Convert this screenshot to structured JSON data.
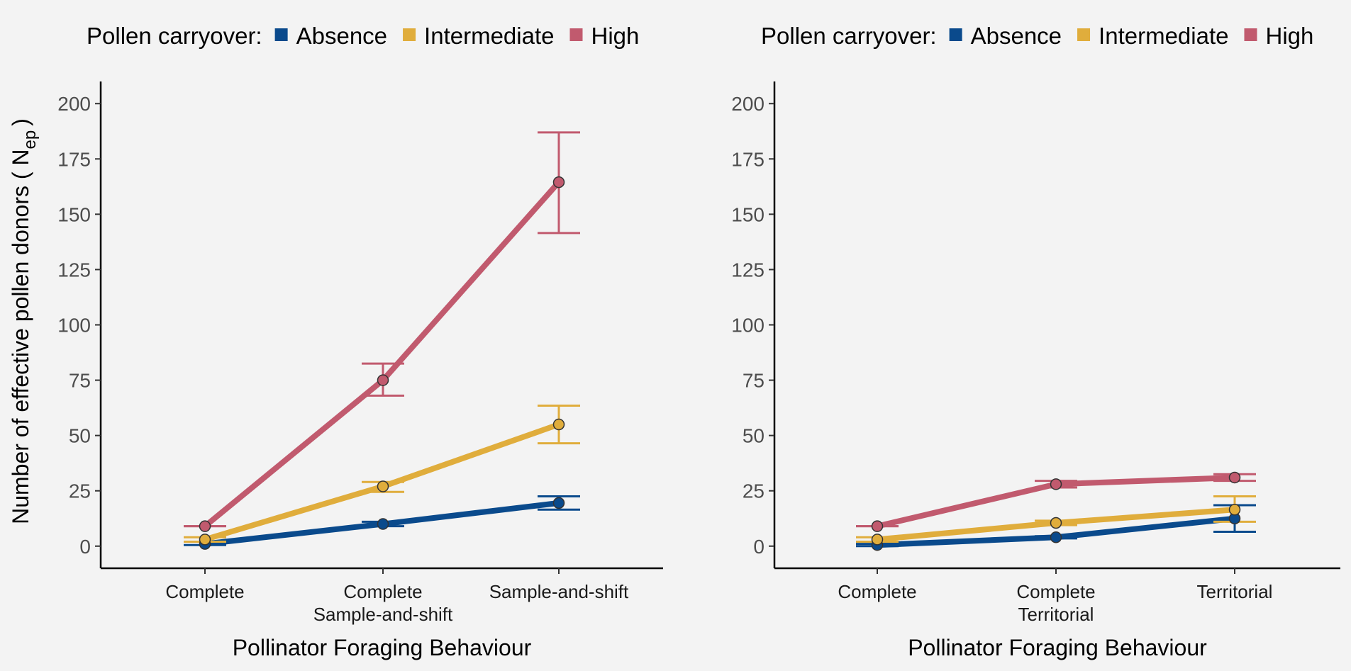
{
  "chart_data": [
    {
      "type": "line",
      "panel": "left",
      "title": "",
      "legend": {
        "title": "Pollen carryover:",
        "placement": "top",
        "entries": [
          "Absence",
          "Intermediate",
          "High"
        ]
      },
      "xlabel": "Pollinator Foraging Behaviour",
      "ylabel": "Number of effective pollen donors ( N",
      "ylabel_subscript": "ep",
      "ylabel_close": ")",
      "ylim": [
        -10,
        210
      ],
      "yticks": [
        0,
        25,
        50,
        75,
        100,
        125,
        150,
        175,
        200
      ],
      "categories": [
        [
          "Complete"
        ],
        [
          "Complete",
          "Sample-and-shift"
        ],
        [
          "Sample-and-shift"
        ]
      ],
      "series": [
        {
          "name": "Absence",
          "color": "#0a4a8c",
          "values": [
            1,
            10,
            19.5
          ],
          "err_low": [
            0.5,
            9,
            16.5
          ],
          "err_high": [
            2,
            11,
            22.5
          ]
        },
        {
          "name": "Intermediate",
          "color": "#e0ad3c",
          "values": [
            3,
            27,
            55
          ],
          "err_low": [
            2,
            24.5,
            46.5
          ],
          "err_high": [
            4,
            29,
            63.5
          ]
        },
        {
          "name": "High",
          "color": "#c15a6e",
          "values": [
            9,
            75,
            164.5
          ],
          "err_low": [
            9,
            68,
            141.5
          ],
          "err_high": [
            9,
            82.5,
            187
          ]
        }
      ],
      "grid": false
    },
    {
      "type": "line",
      "panel": "right",
      "title": "",
      "legend": {
        "title": "Pollen carryover:",
        "placement": "top",
        "entries": [
          "Absence",
          "Intermediate",
          "High"
        ]
      },
      "xlabel": "Pollinator Foraging Behaviour",
      "ylabel": "",
      "ylim": [
        -10,
        210
      ],
      "yticks": [
        0,
        25,
        50,
        75,
        100,
        125,
        150,
        175,
        200
      ],
      "categories": [
        [
          "Complete"
        ],
        [
          "Complete",
          "Territorial"
        ],
        [
          "Territorial"
        ]
      ],
      "series": [
        {
          "name": "Absence",
          "color": "#0a4a8c",
          "values": [
            0.5,
            4,
            12.5
          ],
          "err_low": [
            0,
            3.5,
            6.5
          ],
          "err_high": [
            1,
            4.5,
            18.5
          ]
        },
        {
          "name": "Intermediate",
          "color": "#e0ad3c",
          "values": [
            3,
            10.5,
            16.5
          ],
          "err_low": [
            2,
            9.5,
            11
          ],
          "err_high": [
            4,
            11.5,
            22.5
          ]
        },
        {
          "name": "High",
          "color": "#c15a6e",
          "values": [
            9,
            28,
            31
          ],
          "err_low": [
            9,
            26.5,
            29.5
          ],
          "err_high": [
            9,
            29.5,
            32.5
          ]
        }
      ],
      "grid": false
    }
  ]
}
